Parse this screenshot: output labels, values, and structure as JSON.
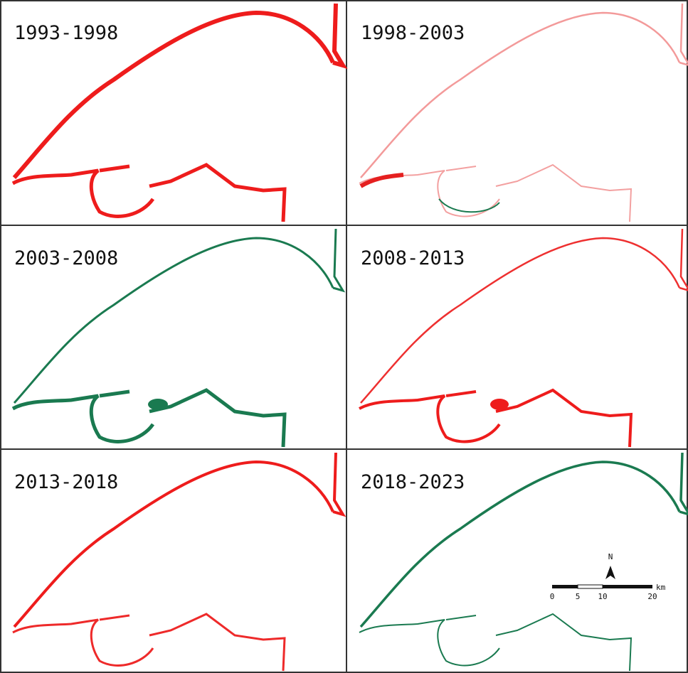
{
  "panels": [
    {
      "label": "1993-1998"
    },
    {
      "label": "1998-2003"
    },
    {
      "label": "2003-2008"
    },
    {
      "label": "2008-2013"
    },
    {
      "label": "2013-2018"
    },
    {
      "label": "2018-2023"
    }
  ],
  "scale_bar": {
    "north": "N",
    "unit": "km",
    "ticks": [
      0,
      5,
      10,
      20
    ]
  }
}
